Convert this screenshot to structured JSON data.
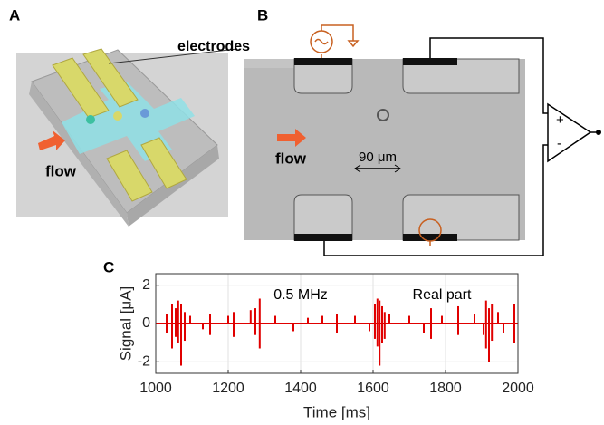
{
  "panels": {
    "a": {
      "label": "A",
      "electrodes_label": "electrodes",
      "flow_label": "flow"
    },
    "b": {
      "label": "B",
      "flow_label": "flow",
      "scale_label": "90 μm",
      "plus": "+",
      "minus": "-"
    }
  },
  "chart_data": {
    "type": "stem",
    "panel_label": "C",
    "x_label": "Time [ms]",
    "y_label": "Signal [μA]",
    "annotations": [
      "0.5 MHz",
      "Real part"
    ],
    "color": "#e00000",
    "grid": true,
    "xlim": [
      1000,
      2000
    ],
    "xticks": [
      1000,
      1200,
      1400,
      1600,
      1800,
      2000
    ],
    "ylim": [
      -2.6,
      2.6
    ],
    "yticks": [
      -2,
      0,
      2
    ],
    "x": [
      1030,
      1030,
      1045,
      1045,
      1055,
      1055,
      1062,
      1062,
      1070,
      1070,
      1080,
      1080,
      1095,
      1130,
      1150,
      1150,
      1200,
      1215,
      1215,
      1262,
      1275,
      1275,
      1287,
      1287,
      1330,
      1380,
      1420,
      1460,
      1500,
      1500,
      1550,
      1590,
      1605,
      1605,
      1612,
      1612,
      1618,
      1618,
      1625,
      1625,
      1632,
      1632,
      1645,
      1700,
      1740,
      1760,
      1760,
      1790,
      1835,
      1835,
      1880,
      1905,
      1912,
      1912,
      1920,
      1920,
      1928,
      1928,
      1945,
      1960,
      1990,
      1990
    ],
    "values": [
      0.5,
      -0.5,
      1.0,
      -1.3,
      0.8,
      -0.7,
      1.2,
      -1.0,
      1.0,
      -2.2,
      0.6,
      -0.9,
      0.4,
      -0.3,
      0.5,
      -0.6,
      0.4,
      0.6,
      -0.7,
      0.7,
      0.8,
      -0.6,
      1.3,
      -1.3,
      0.4,
      -0.4,
      0.3,
      0.4,
      0.5,
      -0.5,
      0.4,
      -0.4,
      1.0,
      -0.8,
      1.3,
      -1.2,
      1.2,
      -2.2,
      0.9,
      -1.0,
      0.6,
      -0.8,
      0.5,
      0.4,
      -0.5,
      0.8,
      -0.8,
      0.4,
      0.9,
      -0.6,
      0.5,
      -0.6,
      1.2,
      -1.3,
      0.8,
      -2.0,
      1.0,
      -0.9,
      0.6,
      -0.5,
      1.0,
      -1.0
    ]
  }
}
